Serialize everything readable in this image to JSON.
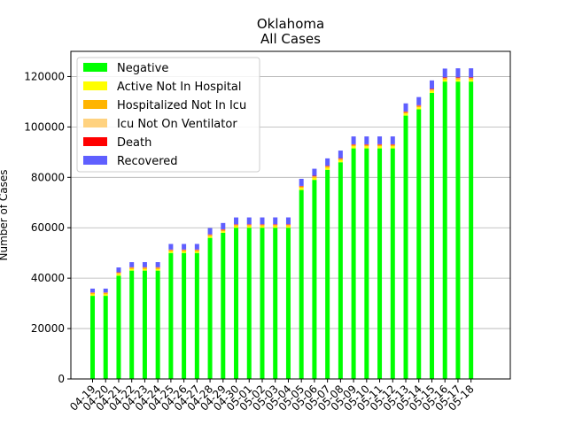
{
  "chart_data": {
    "type": "bar",
    "stacked": true,
    "title": "Oklahoma",
    "subtitle": "All Cases",
    "xlabel": "",
    "ylabel": "Number of Cases",
    "ylim": [
      0,
      130000
    ],
    "yticks": [
      0,
      20000,
      40000,
      60000,
      80000,
      100000,
      120000
    ],
    "grid": "horizontal",
    "legend_position": "top-left",
    "categories": [
      "04-19",
      "04-20",
      "04-21",
      "04-22",
      "04-23",
      "04-24",
      "04-25",
      "04-26",
      "04-27",
      "04-28",
      "04-29",
      "04-30",
      "05-01",
      "05-02",
      "05-03",
      "05-04",
      "05-05",
      "05-06",
      "05-07",
      "05-08",
      "05-09",
      "05-10",
      "05-11",
      "05-12",
      "05-13",
      "05-14",
      "05-15",
      "05-16",
      "05-17",
      "05-18"
    ],
    "series": [
      {
        "name": "Negative",
        "color": "#00ff00",
        "values": [
          33000,
          33000,
          41000,
          43000,
          43000,
          43000,
          50000,
          50000,
          50000,
          56000,
          58000,
          60000,
          60000,
          60000,
          60000,
          60000,
          75000,
          79000,
          83000,
          86000,
          91500,
          91500,
          91500,
          91500,
          104500,
          107000,
          113500,
          118000,
          118000,
          118000
        ]
      },
      {
        "name": "Active Not In Hospital",
        "color": "#ffff00",
        "values": [
          600,
          600,
          600,
          600,
          600,
          600,
          600,
          600,
          600,
          600,
          600,
          600,
          600,
          600,
          600,
          600,
          800,
          800,
          800,
          800,
          800,
          800,
          800,
          800,
          800,
          800,
          800,
          800,
          800,
          800
        ]
      },
      {
        "name": "Hospitalized Not In Icu",
        "color": "#ffb400",
        "values": [
          500,
          500,
          500,
          500,
          500,
          500,
          500,
          500,
          500,
          500,
          500,
          500,
          500,
          500,
          500,
          500,
          500,
          500,
          500,
          500,
          500,
          500,
          500,
          500,
          500,
          500,
          500,
          500,
          500,
          500
        ]
      },
      {
        "name": "Icu Not On Ventilator",
        "color": "#ffd27f",
        "values": [
          100,
          100,
          100,
          100,
          100,
          100,
          100,
          100,
          100,
          100,
          100,
          100,
          100,
          100,
          100,
          100,
          100,
          100,
          100,
          100,
          100,
          100,
          100,
          100,
          100,
          100,
          100,
          100,
          100,
          100
        ]
      },
      {
        "name": "Death",
        "color": "#ff0000",
        "values": [
          150,
          150,
          150,
          150,
          160,
          160,
          170,
          170,
          180,
          180,
          190,
          190,
          200,
          200,
          210,
          210,
          220,
          220,
          230,
          230,
          240,
          240,
          250,
          250,
          260,
          260,
          270,
          270,
          280,
          280
        ]
      },
      {
        "name": "Recovered",
        "color": "#5f5fff",
        "values": [
          1500,
          1500,
          1900,
          2000,
          2000,
          2000,
          2200,
          2200,
          2200,
          2500,
          2500,
          2700,
          2700,
          2700,
          2700,
          2700,
          2800,
          2800,
          2900,
          3000,
          3100,
          3100,
          3100,
          3100,
          3200,
          3200,
          3300,
          3500,
          3600,
          3600
        ]
      }
    ]
  }
}
